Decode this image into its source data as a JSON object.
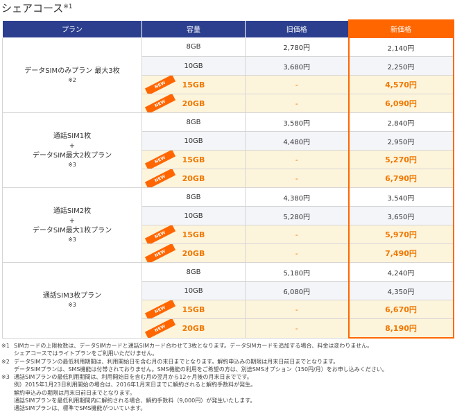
{
  "heading": {
    "title": "シェアコース",
    "note_mark": "※1"
  },
  "table": {
    "headers": {
      "plan": "プラン",
      "capacity": "容量",
      "old_price": "旧価格",
      "new_price": "新価格"
    },
    "new_badge": "NEW",
    "groups": [
      {
        "plan_lines": [
          "データSIMのみプラン 最大3枚"
        ],
        "note": "※2",
        "rows": [
          {
            "capacity": "8GB",
            "old_price": "2,780円",
            "new_price": "2,140円",
            "is_new": false
          },
          {
            "capacity": "10GB",
            "old_price": "3,680円",
            "new_price": "2,250円",
            "is_new": false
          },
          {
            "capacity": "15GB",
            "old_price": "-",
            "new_price": "4,570円",
            "is_new": true
          },
          {
            "capacity": "20GB",
            "old_price": "-",
            "new_price": "6,090円",
            "is_new": true
          }
        ]
      },
      {
        "plan_lines": [
          "通話SIM1枚",
          "+",
          "データSIM最大2枚プラン"
        ],
        "note": "※3",
        "rows": [
          {
            "capacity": "8GB",
            "old_price": "3,580円",
            "new_price": "2,840円",
            "is_new": false
          },
          {
            "capacity": "10GB",
            "old_price": "4,480円",
            "new_price": "2,950円",
            "is_new": false
          },
          {
            "capacity": "15GB",
            "old_price": "-",
            "new_price": "5,270円",
            "is_new": true
          },
          {
            "capacity": "20GB",
            "old_price": "-",
            "new_price": "6,790円",
            "is_new": true
          }
        ]
      },
      {
        "plan_lines": [
          "通話SIM2枚",
          "+",
          "データSIM最大1枚プラン"
        ],
        "note": "※3",
        "rows": [
          {
            "capacity": "8GB",
            "old_price": "4,380円",
            "new_price": "3,540円",
            "is_new": false
          },
          {
            "capacity": "10GB",
            "old_price": "5,280円",
            "new_price": "3,650円",
            "is_new": false
          },
          {
            "capacity": "15GB",
            "old_price": "-",
            "new_price": "5,970円",
            "is_new": true
          },
          {
            "capacity": "20GB",
            "old_price": "-",
            "new_price": "7,490円",
            "is_new": true
          }
        ]
      },
      {
        "plan_lines": [
          "通話SIM3枚プラン"
        ],
        "note": "※3",
        "rows": [
          {
            "capacity": "8GB",
            "old_price": "5,180円",
            "new_price": "4,240円",
            "is_new": false
          },
          {
            "capacity": "10GB",
            "old_price": "6,080円",
            "new_price": "4,350円",
            "is_new": false
          },
          {
            "capacity": "15GB",
            "old_price": "-",
            "new_price": "6,670円",
            "is_new": true
          },
          {
            "capacity": "20GB",
            "old_price": "-",
            "new_price": "8,190円",
            "is_new": true
          }
        ]
      }
    ]
  },
  "notes": [
    {
      "mark": "※1",
      "lines": [
        "SIMカードの上限枚数は、データSIMカードと通話SIMカード合わせて3枚となります。データSIMカードを追加する場合、料金は変わりません。",
        "シェアコースではライトプランをご利用いただけません。"
      ]
    },
    {
      "mark": "※2",
      "lines": [
        "データSIMプランの最低利用期間は、利用開始日を含む月の末日までとなります。解約申込みの期限は月末日前日までとなります。",
        "データSIMプランは、SMS機能は付帯されておりません。SMS機能の利用をご希望の方は、別途SMSオプション（150円/月）をお申し込みください。"
      ]
    },
    {
      "mark": "※3",
      "lines": [
        "通話SIMプランの最低利用期間は、利用開始日を含む月の翌月から12ヶ月後の月末日までです。",
        "例）2015年1月23日利用開始の場合は、2016年1月末日までに解約されると解約手数料が発生。",
        "解約申込みの期限は月末日前日までとなります。",
        "通話SIMプランを最低利用期間内に解約される場合、解約手数料（9,000円）が発生いたします。",
        "通話SIMプランは、標準でSMS機能がついています。"
      ]
    }
  ],
  "colors": {
    "header_blue": "#2b3f8e",
    "accent_orange": "#ff6600",
    "new_row_bg": "#fdf4dc",
    "new_price_text": "#f07800"
  }
}
